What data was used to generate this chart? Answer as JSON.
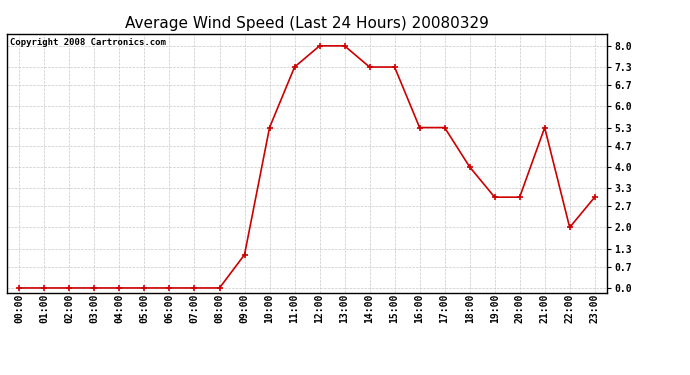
{
  "title": "Average Wind Speed (Last 24 Hours) 20080329",
  "copyright": "Copyright 2008 Cartronics.com",
  "hours": [
    "00:00",
    "01:00",
    "02:00",
    "03:00",
    "04:00",
    "05:00",
    "06:00",
    "07:00",
    "08:00",
    "09:00",
    "10:00",
    "11:00",
    "12:00",
    "13:00",
    "14:00",
    "15:00",
    "16:00",
    "17:00",
    "18:00",
    "19:00",
    "20:00",
    "21:00",
    "22:00",
    "23:00"
  ],
  "values": [
    0.0,
    0.0,
    0.0,
    0.0,
    0.0,
    0.0,
    0.0,
    0.0,
    0.0,
    1.1,
    5.3,
    7.3,
    8.0,
    8.0,
    7.3,
    7.3,
    5.3,
    5.3,
    4.0,
    3.0,
    3.0,
    5.3,
    2.0,
    3.0
  ],
  "yticks": [
    0.0,
    0.7,
    1.3,
    2.0,
    2.7,
    3.3,
    4.0,
    4.7,
    5.3,
    6.0,
    6.7,
    7.3,
    8.0
  ],
  "ylim": [
    -0.15,
    8.4
  ],
  "line_color": "#cc0000",
  "marker_color": "#cc0000",
  "bg_color": "#ffffff",
  "plot_bg_color": "#ffffff",
  "grid_color": "#c8c8c8",
  "title_fontsize": 11,
  "copyright_fontsize": 6.5,
  "tick_fontsize": 7,
  "ytick_fontsize": 7
}
